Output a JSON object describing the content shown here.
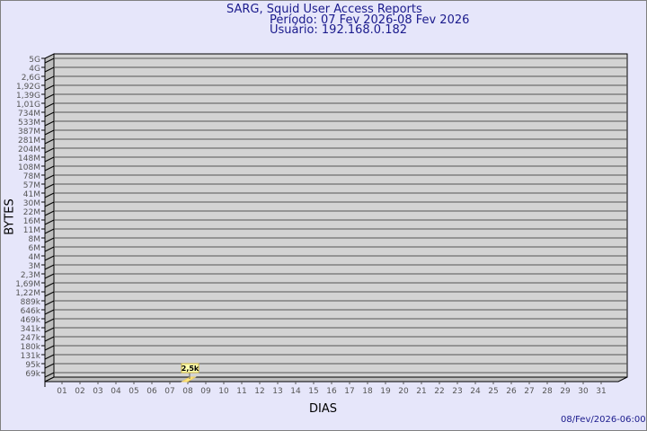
{
  "title": "SARG, Squid User Access Reports",
  "period": "Período: 07 Fev 2026-08 Fev 2026",
  "user": "Usuário: 192.168.0.182",
  "timestamp": "08/Fev/2026-06:00",
  "chart_data": {
    "type": "bar",
    "xlabel": "DIAS",
    "ylabel": "BYTES",
    "y_scale": "log",
    "grid": true,
    "colors": {
      "background": "#e6e6fa",
      "plot": "#d3d3d3",
      "bar": "#ffe680",
      "title": "#1a1a8c"
    },
    "y_ticks": [
      "5G",
      "4G",
      "2,6G",
      "1,92G",
      "1,39G",
      "1,01G",
      "734M",
      "533M",
      "387M",
      "281M",
      "204M",
      "148M",
      "108M",
      "78M",
      "57M",
      "41M",
      "30M",
      "22M",
      "16M",
      "11M",
      "8M",
      "6M",
      "4M",
      "3M",
      "2,3M",
      "1,69M",
      "1,22M",
      "889k",
      "646k",
      "469k",
      "341k",
      "247k",
      "180k",
      "131k",
      "95k",
      "69k"
    ],
    "categories": [
      "01",
      "02",
      "03",
      "04",
      "05",
      "06",
      "07",
      "08",
      "09",
      "10",
      "11",
      "12",
      "13",
      "14",
      "15",
      "16",
      "17",
      "18",
      "19",
      "20",
      "21",
      "22",
      "23",
      "24",
      "25",
      "26",
      "27",
      "28",
      "29",
      "30",
      "31"
    ],
    "bars": [
      {
        "category": "08",
        "value": 2500,
        "label": "2,5k"
      }
    ]
  }
}
